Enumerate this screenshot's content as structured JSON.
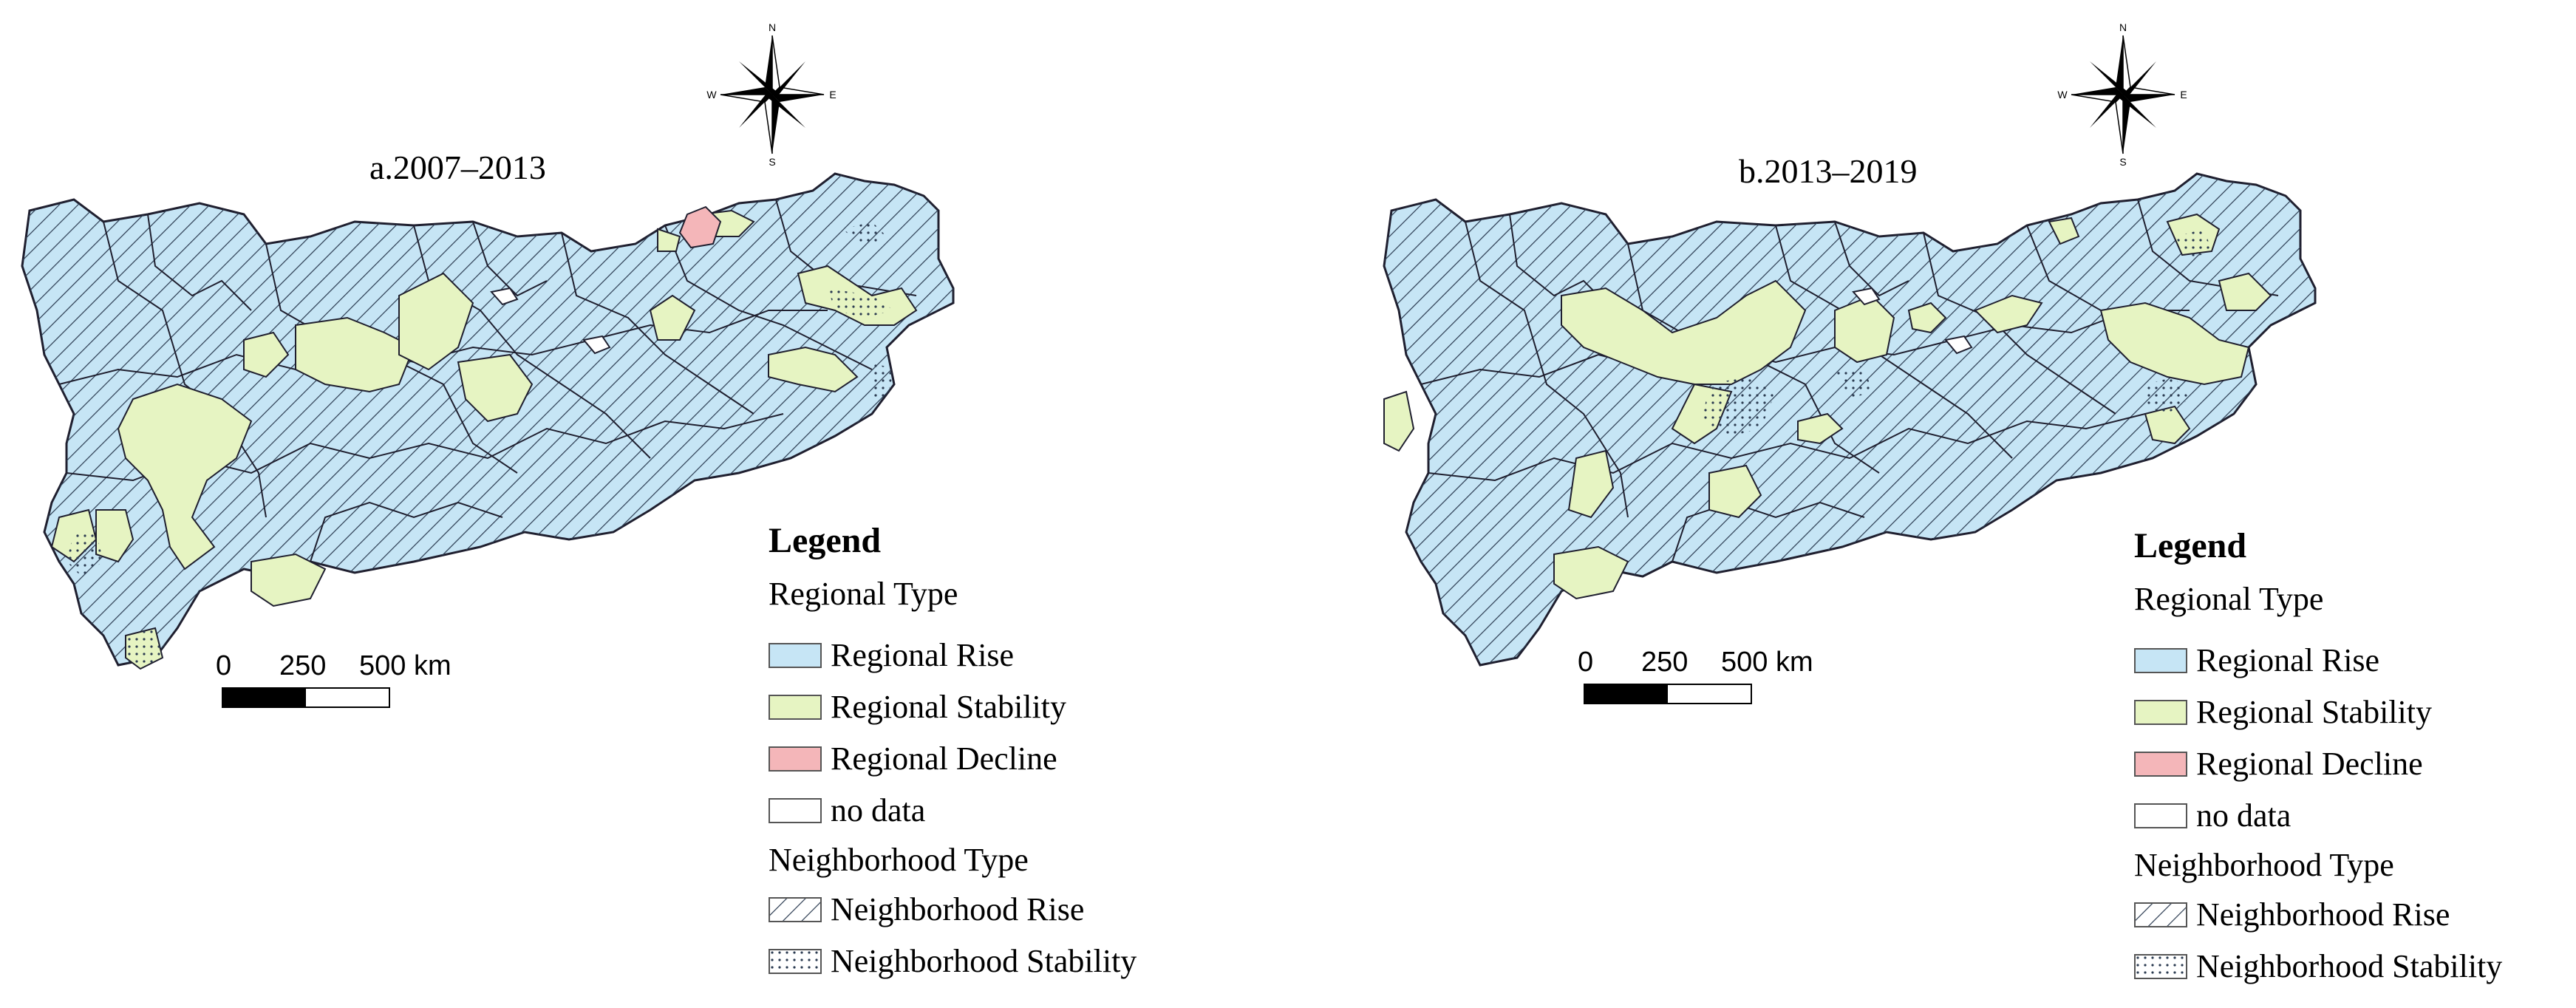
{
  "colors": {
    "regional_rise": "#c6e5f5",
    "regional_stability": "#e6f4c2",
    "regional_decline": "#f4b6b9",
    "no_data": "#ffffff",
    "boundary": "#1f1f2f"
  },
  "compass": {
    "n": "N",
    "s": "S",
    "e": "E",
    "w": "W",
    "icon": "compass-rose-icon"
  },
  "legend": {
    "heading": "Legend",
    "regional_type_title": "Regional Type",
    "regional_items": [
      {
        "label": "Regional Rise",
        "color": "#c6e5f5"
      },
      {
        "label": "Regional Stability",
        "color": "#e6f4c2"
      },
      {
        "label": "Regional Decline",
        "color": "#f4b6b9"
      },
      {
        "label": "no data",
        "color": "#ffffff"
      }
    ],
    "neighborhood_type_title": "Neighborhood Type",
    "neighborhood_items": [
      {
        "label": "Neighborhood Rise",
        "pattern": "hatch"
      },
      {
        "label": "Neighborhood Stability",
        "pattern": "dots"
      }
    ]
  },
  "scale": {
    "labels": [
      "0",
      "250",
      "500 km"
    ]
  },
  "panels": [
    {
      "title": "a.2007–2013"
    },
    {
      "title": "b.2013–2019"
    }
  ]
}
